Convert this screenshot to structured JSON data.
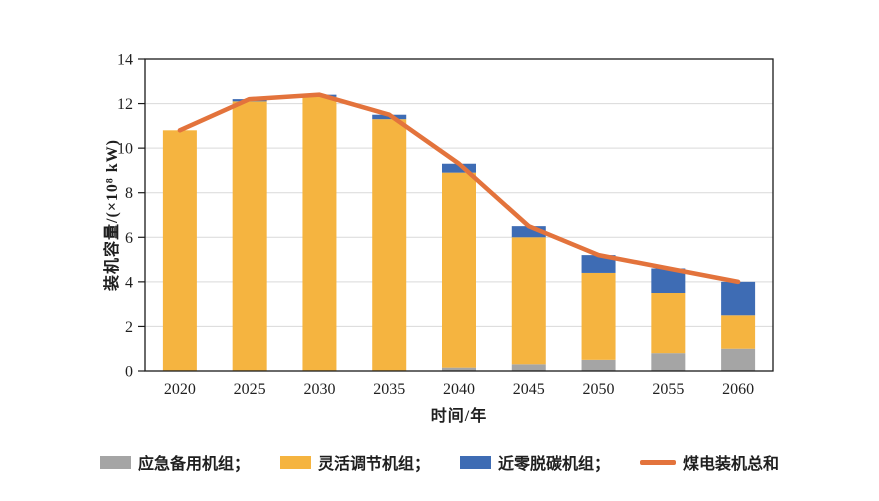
{
  "chart_data": {
    "type": "bar",
    "subtype": "stacked-bars-with-total-line",
    "title": "",
    "categories": [
      "2020",
      "2025",
      "2030",
      "2035",
      "2040",
      "2045",
      "2050",
      "2055",
      "2060"
    ],
    "series": [
      {
        "name": "应急备用机组",
        "type": "bar",
        "color": "#A5A5A5",
        "values": [
          0,
          0,
          0,
          0,
          0.15,
          0.3,
          0.5,
          0.8,
          1.0
        ]
      },
      {
        "name": "灵活调节机组",
        "type": "bar",
        "color": "#F5B440",
        "values": [
          10.8,
          12.1,
          12.3,
          11.3,
          8.75,
          5.7,
          3.9,
          2.7,
          1.5
        ]
      },
      {
        "name": "近零脱碳机组",
        "type": "bar",
        "color": "#3E6CB4",
        "values": [
          0,
          0.1,
          0.1,
          0.2,
          0.4,
          0.5,
          0.8,
          1.1,
          1.5
        ]
      },
      {
        "name": "煤电装机总和",
        "type": "line",
        "color": "#E3733C",
        "values": [
          10.8,
          12.2,
          12.4,
          11.5,
          9.3,
          6.5,
          5.2,
          4.6,
          4.0
        ]
      }
    ],
    "xlabel": "时间/年",
    "ylabel": "装机容量/(×10⁸ kW)",
    "ylim": [
      0,
      14
    ],
    "yticks": [
      "0",
      "2",
      "4",
      "6",
      "8",
      "10",
      "12",
      "14"
    ],
    "grid": true,
    "grid_color": "#D9D9D9",
    "axis_color": "#1a1a1a",
    "legend_position": "bottom"
  },
  "legend": {
    "items": [
      {
        "label": "应急备用机组；",
        "swatch": "rect",
        "color": "#A5A5A5"
      },
      {
        "label": "灵活调节机组；",
        "swatch": "rect",
        "color": "#F5B440"
      },
      {
        "label": "近零脱碳机组；",
        "swatch": "rect",
        "color": "#3E6CB4"
      },
      {
        "label": "煤电装机总和",
        "swatch": "line",
        "color": "#E3733C"
      }
    ]
  }
}
